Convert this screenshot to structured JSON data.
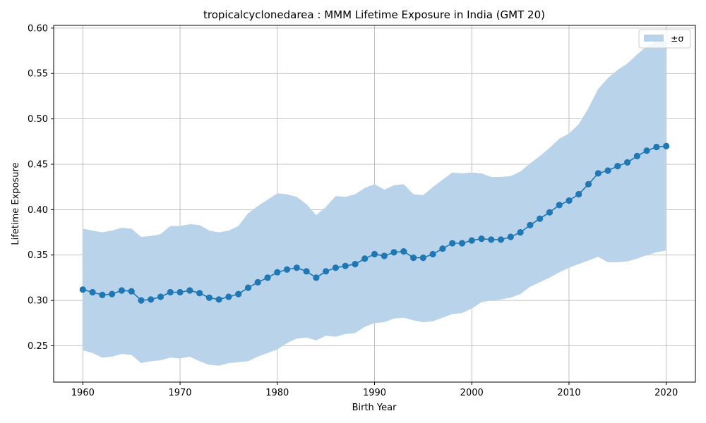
{
  "chart_data": {
    "type": "line",
    "title": "tropicalcyclonedarea : MMM Lifetime Exposure in India (GMT 20)",
    "xlabel": "Birth Year",
    "ylabel": "Lifetime Exposure",
    "xlim": [
      1957,
      2023
    ],
    "ylim": [
      0.21,
      0.603
    ],
    "xticks": [
      1960,
      1970,
      1980,
      1990,
      2000,
      2010,
      2020
    ],
    "yticks": [
      0.25,
      0.3,
      0.35,
      0.4,
      0.45,
      0.5,
      0.55,
      0.6
    ],
    "grid": true,
    "legend": {
      "placement": "top-right",
      "entries": [
        {
          "label": "±σ",
          "kind": "band"
        }
      ]
    },
    "colors": {
      "line": "#1f77b4",
      "band": "#b9d4ea",
      "grid": "#b0b0b0"
    },
    "x": [
      1960,
      1961,
      1962,
      1963,
      1964,
      1965,
      1966,
      1967,
      1968,
      1969,
      1970,
      1971,
      1972,
      1973,
      1974,
      1975,
      1976,
      1977,
      1978,
      1979,
      1980,
      1981,
      1982,
      1983,
      1984,
      1985,
      1986,
      1987,
      1988,
      1989,
      1990,
      1991,
      1992,
      1993,
      1994,
      1995,
      1996,
      1997,
      1998,
      1999,
      2000,
      2001,
      2002,
      2003,
      2004,
      2005,
      2006,
      2007,
      2008,
      2009,
      2010,
      2011,
      2012,
      2013,
      2014,
      2015,
      2016,
      2017,
      2018,
      2019,
      2020
    ],
    "series": [
      {
        "values": [
          0.312,
          0.309,
          0.306,
          0.307,
          0.311,
          0.31,
          0.3,
          0.301,
          0.304,
          0.309,
          0.309,
          0.311,
          0.308,
          0.303,
          0.301,
          0.304,
          0.307,
          0.314,
          0.32,
          0.325,
          0.331,
          0.334,
          0.336,
          0.332,
          0.325,
          0.332,
          0.336,
          0.338,
          0.34,
          0.346,
          0.351,
          0.349,
          0.353,
          0.354,
          0.347,
          0.347,
          0.351,
          0.357,
          0.363,
          0.363,
          0.366,
          0.368,
          0.367,
          0.367,
          0.37,
          0.375,
          0.383,
          0.39,
          0.397,
          0.405,
          0.41,
          0.417,
          0.428,
          0.44,
          0.443,
          0.448,
          0.452,
          0.459,
          0.465,
          0.469,
          0.47
        ],
        "lower": [
          0.245,
          0.242,
          0.237,
          0.238,
          0.241,
          0.24,
          0.231,
          0.233,
          0.234,
          0.237,
          0.236,
          0.238,
          0.233,
          0.229,
          0.228,
          0.231,
          0.232,
          0.233,
          0.238,
          0.242,
          0.246,
          0.253,
          0.258,
          0.259,
          0.256,
          0.261,
          0.26,
          0.263,
          0.264,
          0.271,
          0.275,
          0.276,
          0.28,
          0.281,
          0.278,
          0.276,
          0.277,
          0.281,
          0.285,
          0.286,
          0.291,
          0.298,
          0.3,
          0.301,
          0.303,
          0.307,
          0.315,
          0.32,
          0.325,
          0.331,
          0.336,
          0.34,
          0.344,
          0.348,
          0.342,
          0.342,
          0.343,
          0.346,
          0.35,
          0.353,
          0.355
        ],
        "upper": [
          0.379,
          0.377,
          0.375,
          0.377,
          0.38,
          0.379,
          0.37,
          0.371,
          0.373,
          0.382,
          0.382,
          0.384,
          0.383,
          0.377,
          0.375,
          0.377,
          0.382,
          0.396,
          0.404,
          0.411,
          0.418,
          0.417,
          0.414,
          0.406,
          0.394,
          0.403,
          0.415,
          0.414,
          0.417,
          0.424,
          0.428,
          0.422,
          0.427,
          0.428,
          0.417,
          0.416,
          0.425,
          0.433,
          0.441,
          0.44,
          0.441,
          0.44,
          0.436,
          0.436,
          0.437,
          0.442,
          0.451,
          0.459,
          0.468,
          0.478,
          0.484,
          0.494,
          0.512,
          0.533,
          0.545,
          0.554,
          0.561,
          0.571,
          0.58,
          0.586,
          0.585
        ]
      }
    ]
  }
}
